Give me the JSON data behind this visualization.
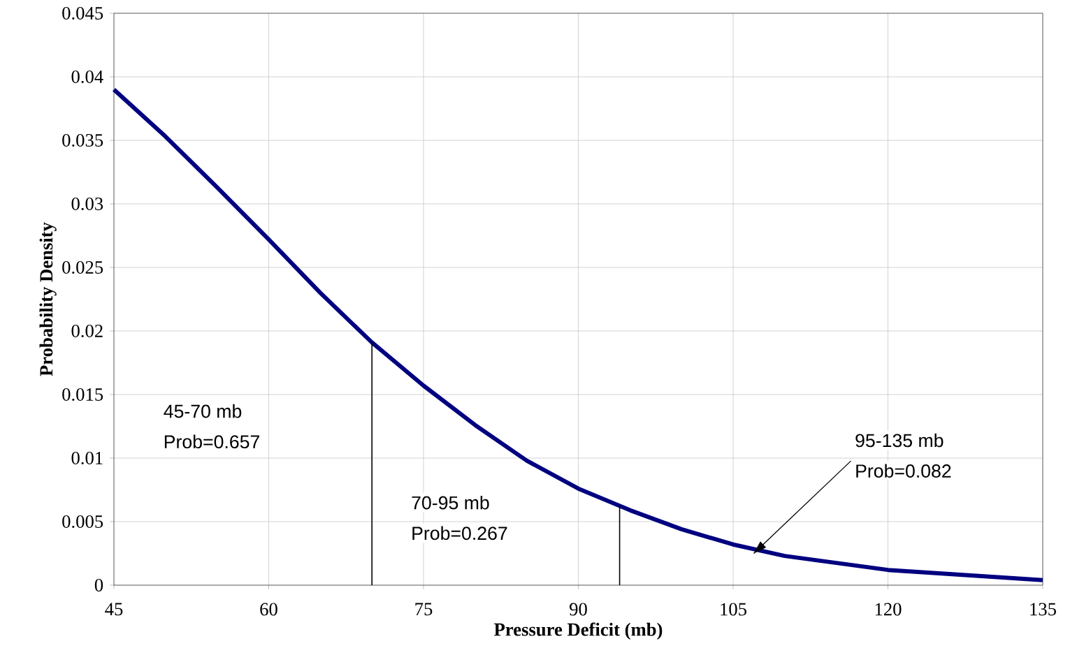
{
  "chart_data": {
    "type": "line",
    "xlabel": "Pressure Deficit (mb)",
    "ylabel": "Probability Density",
    "x": [
      45,
      50,
      55,
      60,
      65,
      70,
      75,
      80,
      85,
      90,
      95,
      100,
      105,
      110,
      120,
      135
    ],
    "series": [
      {
        "color": "#000080",
        "values": [
          0.039,
          0.0353,
          0.0313,
          0.0272,
          0.023,
          0.0191,
          0.0157,
          0.0126,
          0.0098,
          0.0076,
          0.0059,
          0.0044,
          0.0032,
          0.0023,
          0.0012,
          0.0004
        ]
      }
    ],
    "xlim": [
      45,
      135
    ],
    "xticks": [
      45,
      60,
      75,
      90,
      105,
      120,
      135
    ],
    "ylim": [
      0,
      0.045
    ],
    "yticks": [
      0,
      0.005,
      0.01,
      0.015,
      0.02,
      0.025,
      0.03,
      0.035,
      0.04,
      0.045
    ],
    "grid": true,
    "marker": "none",
    "line_style": "solid",
    "ref_lines": [
      {
        "axis": "x",
        "value": 70,
        "color": "#000000"
      },
      {
        "axis": "x",
        "value": 94,
        "color": "#000000"
      }
    ],
    "annotations": [
      "45-70 mb",
      "Prob=0.657",
      "70-95 mb",
      "Prob=0.267",
      "95-135 mb",
      {
        "text": "Prob=0.082",
        "x": 107,
        "y": 0.0025
      }
    ]
  }
}
